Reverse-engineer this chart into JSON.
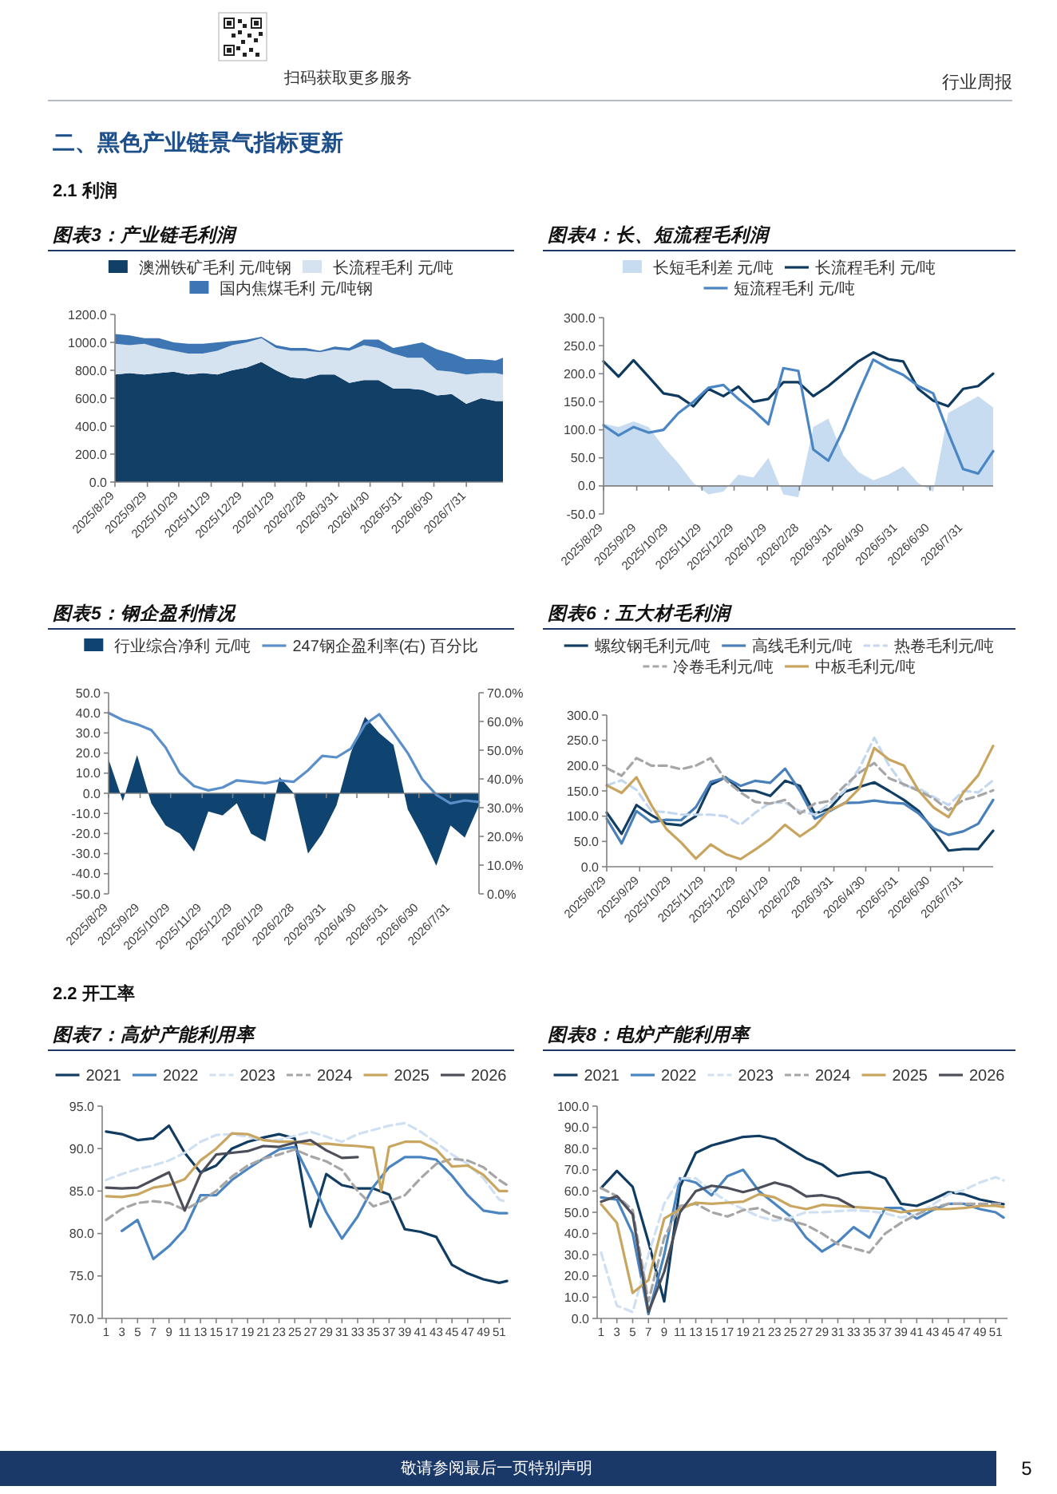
{
  "chart_data": [
    {
      "type": "area",
      "title": "图表3：产业链毛利润",
      "stacked": true,
      "legend": "top",
      "x": [
        "2025-08-29",
        "2025-09-12",
        "2025-09-26",
        "2025-10-10",
        "2025-10-24",
        "2025-11-07",
        "2025-11-21",
        "2025-12-05",
        "2025-12-19",
        "2026-01-02",
        "2026-01-16",
        "2026-01-30",
        "2026-02-13",
        "2026-02-27",
        "2026-03-13",
        "2026-03-27",
        "2026-04-10",
        "2026-04-24",
        "2026-05-08",
        "2026-05-22",
        "2026-06-05",
        "2026-06-19",
        "2026-07-03",
        "2026-07-17",
        "2026-07-31",
        "2026-08-14",
        "2026-08-28",
        "2026-09-04"
      ],
      "series": [
        {
          "name": "澳洲铁矿毛利 元/吨钢",
          "color": "#123f66",
          "values": [
            770,
            780,
            770,
            780,
            790,
            770,
            780,
            770,
            800,
            820,
            860,
            800,
            750,
            740,
            770,
            770,
            710,
            730,
            730,
            670,
            670,
            660,
            620,
            630,
            560,
            600,
            580,
            580
          ]
        },
        {
          "name": "长流程毛利 元/吨",
          "color": "#d5e3f1",
          "values": [
            220,
            200,
            220,
            180,
            150,
            150,
            140,
            170,
            180,
            180,
            170,
            160,
            190,
            200,
            160,
            180,
            230,
            250,
            230,
            250,
            220,
            230,
            180,
            160,
            210,
            180,
            200,
            190
          ]
        },
        {
          "name": "国内焦煤毛利 元/吨钢",
          "color": "#3d76b3",
          "values": [
            70,
            70,
            40,
            70,
            60,
            70,
            70,
            60,
            30,
            20,
            10,
            20,
            20,
            20,
            10,
            20,
            20,
            40,
            60,
            40,
            90,
            110,
            150,
            130,
            110,
            100,
            90,
            120
          ]
        }
      ],
      "xlim": [
        "2025-08-29",
        "2026-09-04"
      ],
      "xticks": [
        {
          "value": "2025-08-29",
          "label": "2025/8/29"
        },
        {
          "value": "2025-09-29",
          "label": "2025/9/29"
        },
        {
          "value": "2025-10-29",
          "label": "2025/10/29"
        },
        {
          "value": "2025-11-29",
          "label": "2025/11/29"
        },
        {
          "value": "2025-12-29",
          "label": "2025/12/29"
        },
        {
          "value": "2026-01-29",
          "label": "2026/1/29"
        },
        {
          "value": "2026-02-28",
          "label": "2026/2/28"
        },
        {
          "value": "2026-03-31",
          "label": "2026/3/31"
        },
        {
          "value": "2026-04-30",
          "label": "2026/4/30"
        },
        {
          "value": "2026-05-31",
          "label": "2026/5/31"
        },
        {
          "value": "2026-06-30",
          "label": "2026/6/30"
        },
        {
          "value": "2026-07-31",
          "label": "2026/7/31"
        }
      ],
      "ylim": [
        0,
        1200
      ],
      "yticks": [
        {
          "value": 0,
          "label": "0.0"
        },
        {
          "value": 200,
          "label": "200.0"
        },
        {
          "value": 400,
          "label": "400.0"
        },
        {
          "value": 600,
          "label": "600.0"
        },
        {
          "value": 800,
          "label": "800.0"
        },
        {
          "value": 1000,
          "label": "1000.0"
        },
        {
          "value": 1200,
          "label": "1200.0"
        }
      ],
      "annotations": [
        "扫码获取更多服务",
        "行业周报",
        "二、黑色产业链景气指标更新",
        "2.1 利润"
      ]
    },
    {
      "type": "line",
      "title": "图表4：长、短流程毛利润",
      "legend": "top",
      "x": [
        "2025-08-29",
        "2025-09-12",
        "2025-09-26",
        "2025-10-10",
        "2025-10-24",
        "2025-11-07",
        "2025-11-21",
        "2025-12-05",
        "2025-12-19",
        "2026-01-02",
        "2026-01-16",
        "2026-01-30",
        "2026-02-13",
        "2026-02-27",
        "2026-03-13",
        "2026-03-27",
        "2026-04-10",
        "2026-04-24",
        "2026-05-08",
        "2026-05-22",
        "2026-06-05",
        "2026-06-19",
        "2026-07-03",
        "2026-07-17",
        "2026-07-31",
        "2026-08-14",
        "2026-08-28"
      ],
      "series": [
        {
          "name": "长短毛利差 元/吨",
          "type": "area",
          "color": "#c7dcf0",
          "values": [
            111,
            105,
            115,
            105,
            70,
            40,
            5,
            -15,
            -10,
            20,
            15,
            50,
            -15,
            -20,
            105,
            120,
            55,
            25,
            10,
            20,
            35,
            5,
            -10,
            130,
            145,
            160,
            140
          ]
        },
        {
          "name": "长流程毛利 元/吨",
          "color": "#0f3a5f",
          "values": [
            222,
            195,
            224,
            195,
            165,
            160,
            142,
            173,
            160,
            177,
            150,
            155,
            185,
            185,
            160,
            178,
            200,
            222,
            238,
            226,
            222,
            173,
            152,
            142,
            173,
            178,
            200
          ]
        },
        {
          "name": "短流程毛利 元/吨",
          "color": "#4b86c4",
          "values": [
            108,
            90,
            105,
            95,
            100,
            130,
            150,
            175,
            180,
            155,
            135,
            110,
            210,
            205,
            65,
            45,
            100,
            165,
            225,
            210,
            198,
            178,
            165,
            95,
            30,
            22,
            62
          ]
        }
      ],
      "xlim": [
        "2025-08-29",
        "2026-08-28"
      ],
      "xticks": [
        {
          "value": "2025-08-29",
          "label": "2025/8/29"
        },
        {
          "value": "2025-09-29",
          "label": "2025/9/29"
        },
        {
          "value": "2025-10-29",
          "label": "2025/10/29"
        },
        {
          "value": "2025-11-29",
          "label": "2025/11/29"
        },
        {
          "value": "2025-12-29",
          "label": "2025/12/29"
        },
        {
          "value": "2026-01-29",
          "label": "2026/1/29"
        },
        {
          "value": "2026-02-28",
          "label": "2026/2/28"
        },
        {
          "value": "2026-03-31",
          "label": "2026/3/31"
        },
        {
          "value": "2026-04-30",
          "label": "2026/4/30"
        },
        {
          "value": "2026-05-31",
          "label": "2026/5/31"
        },
        {
          "value": "2026-06-30",
          "label": "2026/6/30"
        },
        {
          "value": "2026-07-31",
          "label": "2026/7/31"
        }
      ],
      "ylim": [
        -50,
        300
      ],
      "yticks": [
        {
          "value": -50,
          "label": "-50.0"
        },
        {
          "value": 0,
          "label": "0.0"
        },
        {
          "value": 50,
          "label": "50.0"
        },
        {
          "value": 100,
          "label": "100.0"
        },
        {
          "value": 150,
          "label": "150.0"
        },
        {
          "value": 200,
          "label": "200.0"
        },
        {
          "value": 250,
          "label": "250.0"
        },
        {
          "value": 300,
          "label": "300.0"
        }
      ]
    },
    {
      "type": "area",
      "title": "图表5：钢企盈利情况",
      "legend": "top",
      "x": [
        "2025-08-29",
        "2025-09-12",
        "2025-09-26",
        "2025-10-10",
        "2025-10-24",
        "2025-11-07",
        "2025-11-21",
        "2025-12-05",
        "2025-12-19",
        "2026-01-02",
        "2026-01-16",
        "2026-01-30",
        "2026-02-13",
        "2026-02-27",
        "2026-03-13",
        "2026-03-27",
        "2026-04-10",
        "2026-04-24",
        "2026-05-08",
        "2026-05-22",
        "2026-06-05",
        "2026-06-19",
        "2026-07-03",
        "2026-07-17",
        "2026-07-31",
        "2026-08-14",
        "2026-08-28"
      ],
      "series": [
        {
          "name": "行业综合净利 元/吨",
          "color": "#104470",
          "values": [
            17,
            -4,
            19,
            -5,
            -16,
            -20,
            -29,
            -9,
            -11,
            -5,
            -20,
            -24,
            8,
            0,
            -30,
            -20,
            -6,
            20,
            38,
            30,
            24,
            -8,
            -21,
            -36,
            -16,
            -22,
            -6
          ]
        },
        {
          "name": "247钢企盈利率(右) 百分比",
          "type": "line",
          "axis": "y2",
          "color": "#5b8fca",
          "values": [
            63,
            60.5,
            59,
            57,
            51,
            42,
            37.5,
            36,
            37,
            39.5,
            39,
            38.5,
            39.5,
            39,
            43,
            48,
            47.5,
            50.5,
            59,
            62.5,
            56,
            49,
            40,
            34.5,
            31.5,
            32.5,
            32
          ]
        }
      ],
      "xlim": [
        "2025-08-29",
        "2026-08-28"
      ],
      "xticks": [
        {
          "value": "2025-08-29",
          "label": "2025/8/29"
        },
        {
          "value": "2025-09-29",
          "label": "2025/9/29"
        },
        {
          "value": "2025-10-29",
          "label": "2025/10/29"
        },
        {
          "value": "2025-11-29",
          "label": "2025/11/29"
        },
        {
          "value": "2025-12-29",
          "label": "2025/12/29"
        },
        {
          "value": "2026-01-29",
          "label": "2026/1/29"
        },
        {
          "value": "2026-02-28",
          "label": "2026/2/28"
        },
        {
          "value": "2026-03-31",
          "label": "2026/3/31"
        },
        {
          "value": "2026-04-30",
          "label": "2026/4/30"
        },
        {
          "value": "2026-05-31",
          "label": "2026/5/31"
        },
        {
          "value": "2026-06-30",
          "label": "2026/6/30"
        },
        {
          "value": "2026-07-31",
          "label": "2026/7/31"
        }
      ],
      "ylim": [
        -50,
        50
      ],
      "yticks": [
        {
          "value": -50,
          "label": "-50.0"
        },
        {
          "value": -40,
          "label": "-40.0"
        },
        {
          "value": -30,
          "label": "-30.0"
        },
        {
          "value": -20,
          "label": "-20.0"
        },
        {
          "value": -10,
          "label": "-10.0"
        },
        {
          "value": 0,
          "label": "0.0"
        },
        {
          "value": 10,
          "label": "10.0"
        },
        {
          "value": 20,
          "label": "20.0"
        },
        {
          "value": 30,
          "label": "30.0"
        },
        {
          "value": 40,
          "label": "40.0"
        },
        {
          "value": 50,
          "label": "50.0"
        }
      ],
      "y2lim": [
        0,
        70
      ],
      "y2ticks": [
        {
          "value": 0,
          "label": "0.0%"
        },
        {
          "value": 10,
          "label": "10.0%"
        },
        {
          "value": 20,
          "label": "20.0%"
        },
        {
          "value": 30,
          "label": "30.0%"
        },
        {
          "value": 40,
          "label": "40.0%"
        },
        {
          "value": 50,
          "label": "50.0%"
        },
        {
          "value": 60,
          "label": "60.0%"
        },
        {
          "value": 70,
          "label": "70.0%"
        }
      ]
    },
    {
      "type": "line",
      "title": "图表6：五大材毛利润",
      "legend": "top",
      "x": [
        "2025-08-29",
        "2025-09-12",
        "2025-09-26",
        "2025-10-10",
        "2025-10-24",
        "2025-11-07",
        "2025-11-21",
        "2025-12-05",
        "2025-12-19",
        "2026-01-02",
        "2026-01-16",
        "2026-01-30",
        "2026-02-13",
        "2026-02-27",
        "2026-03-13",
        "2026-03-27",
        "2026-04-10",
        "2026-04-24",
        "2026-05-08",
        "2026-05-22",
        "2026-06-05",
        "2026-06-19",
        "2026-07-03",
        "2026-07-17",
        "2026-07-31",
        "2026-08-14",
        "2026-08-28"
      ],
      "series": [
        {
          "name": "螺纹钢毛利元/吨",
          "color": "#123e64",
          "values": [
            107,
            65,
            122,
            102,
            85,
            82,
            100,
            162,
            177,
            151,
            150,
            140,
            170,
            160,
            105,
            115,
            148,
            158,
            167,
            150,
            132,
            110,
            72,
            32,
            35,
            35,
            71
          ]
        },
        {
          "name": "高线毛利元/吨",
          "color": "#4a80ba",
          "values": [
            95,
            46,
            110,
            88,
            93,
            92,
            118,
            168,
            176,
            160,
            170,
            166,
            194,
            150,
            95,
            110,
            126,
            127,
            131,
            127,
            125,
            105,
            76,
            63,
            70,
            85,
            132
          ]
        },
        {
          "name": "热卷毛利元/吨",
          "color": "#c3d8ee",
          "line_style": "dashed",
          "values": [
            161,
            171,
            152,
            110,
            108,
            103,
            103,
            103,
            100,
            83,
            107,
            127,
            127,
            110,
            103,
            125,
            150,
            195,
            255,
            200,
            160,
            155,
            138,
            122,
            150,
            147,
            171
          ]
        },
        {
          "name": "冷卷毛利元/吨",
          "color": "#a6a6a6",
          "line_style": "dashed",
          "values": [
            195,
            180,
            215,
            200,
            200,
            193,
            200,
            215,
            171,
            147,
            128,
            125,
            132,
            105,
            125,
            130,
            160,
            186,
            205,
            175,
            163,
            150,
            135,
            112,
            132,
            140,
            151
          ]
        },
        {
          "name": "中板毛利元/吨",
          "color": "#c8a45e",
          "values": [
            161,
            146,
            177,
            122,
            75,
            48,
            16,
            44,
            25,
            15,
            34,
            55,
            83,
            60,
            80,
            112,
            125,
            155,
            235,
            212,
            200,
            150,
            117,
            98,
            147,
            181,
            239
          ]
        }
      ],
      "xlim": [
        "2025-08-29",
        "2026-08-28"
      ],
      "xticks": [
        {
          "value": "2025-08-29",
          "label": "2025/8/29"
        },
        {
          "value": "2025-09-29",
          "label": "2025/9/29"
        },
        {
          "value": "2025-10-29",
          "label": "2025/10/29"
        },
        {
          "value": "2025-11-29",
          "label": "2025/11/29"
        },
        {
          "value": "2025-12-29",
          "label": "2025/12/29"
        },
        {
          "value": "2026-01-29",
          "label": "2026/1/29"
        },
        {
          "value": "2026-02-28",
          "label": "2026/2/28"
        },
        {
          "value": "2026-03-31",
          "label": "2026/3/31"
        },
        {
          "value": "2026-04-30",
          "label": "2026/4/30"
        },
        {
          "value": "2026-05-31",
          "label": "2026/5/31"
        },
        {
          "value": "2026-06-30",
          "label": "2026/6/30"
        },
        {
          "value": "2026-07-31",
          "label": "2026/7/31"
        }
      ],
      "ylim": [
        0,
        300
      ],
      "yticks": [
        {
          "value": 0,
          "label": "0.0"
        },
        {
          "value": 50,
          "label": "50.0"
        },
        {
          "value": 100,
          "label": "100.0"
        },
        {
          "value": 150,
          "label": "150.0"
        },
        {
          "value": 200,
          "label": "200.0"
        },
        {
          "value": 250,
          "label": "250.0"
        },
        {
          "value": 300,
          "label": "300.0"
        }
      ]
    },
    {
      "type": "line",
      "title": "图表7：高炉产能利用率",
      "legend": "top",
      "x": [
        1,
        3,
        5,
        7,
        9,
        11,
        13,
        15,
        17,
        19,
        21,
        23,
        25,
        27,
        29,
        31,
        33,
        35,
        37,
        39,
        41,
        43,
        45,
        47,
        49,
        51,
        52
      ],
      "series": [
        {
          "name": "2021",
          "color": "#113c62",
          "values": [
            92.0,
            91.7,
            91.0,
            91.2,
            92.7,
            89.5,
            87.2,
            88.0,
            90.0,
            90.8,
            91.3,
            91.7,
            91.2,
            80.8,
            87.0,
            85.7,
            85.3,
            85.3,
            84.6,
            80.5,
            80.2,
            79.6,
            76.3,
            75.3,
            74.6,
            74.2,
            74.4
          ]
        },
        {
          "name": "2022",
          "color": "#4a84c1",
          "values": [
            null,
            80.3,
            81.6,
            77.0,
            78.5,
            80.5,
            84.5,
            84.5,
            86.3,
            87.6,
            88.8,
            89.9,
            90.2,
            86.5,
            82.5,
            79.4,
            82.0,
            85.5,
            87.8,
            89.0,
            89.0,
            88.7,
            86.8,
            84.5,
            82.7,
            82.4,
            82.4
          ]
        },
        {
          "name": "2023",
          "color": "#cfe0f2",
          "line_style": "dashed",
          "values": [
            86.3,
            87.0,
            87.6,
            88.0,
            88.6,
            89.5,
            90.8,
            91.6,
            91.7,
            91.4,
            91.0,
            91.0,
            91.5,
            92.0,
            91.4,
            90.8,
            91.7,
            92.2,
            92.7,
            93.0,
            92.0,
            90.7,
            89.3,
            88.2,
            86.5,
            84.0,
            83.7
          ]
        },
        {
          "name": "2024",
          "color": "#a6a6a6",
          "line_style": "dashed",
          "values": [
            81.6,
            82.9,
            83.6,
            83.8,
            83.6,
            82.8,
            83.8,
            85.0,
            86.7,
            88.0,
            88.8,
            89.3,
            89.9,
            89.1,
            88.5,
            87.5,
            85.0,
            83.2,
            83.8,
            84.5,
            86.5,
            88.2,
            88.8,
            88.6,
            87.8,
            86.3,
            85.7
          ]
        },
        {
          "name": "2025",
          "color": "#c9a660",
          "x": [
            1,
            3,
            5,
            7,
            9,
            11,
            13,
            15,
            17,
            19,
            21,
            23,
            25,
            27,
            29,
            31,
            33,
            35,
            36,
            37,
            39,
            41,
            43,
            45,
            47,
            49,
            51,
            52
          ],
          "values": [
            84.4,
            84.3,
            84.6,
            85.4,
            85.7,
            86.4,
            88.6,
            90.0,
            91.8,
            91.7,
            91.0,
            90.8,
            90.8,
            90.5,
            90.6,
            90.4,
            90.3,
            90.1,
            85.0,
            90.2,
            90.8,
            90.8,
            89.9,
            87.9,
            88.0,
            86.9,
            85.0,
            85.0
          ]
        },
        {
          "name": "2026",
          "color": "#4c4f5a",
          "x": [
            1,
            3,
            5,
            7,
            9,
            11,
            13,
            15,
            17,
            19,
            21,
            23,
            25,
            27,
            29,
            31,
            33
          ],
          "values": [
            85.4,
            85.3,
            85.4,
            86.3,
            87.2,
            82.7,
            87.0,
            89.3,
            89.5,
            89.7,
            90.3,
            90.2,
            90.7,
            91.0,
            89.8,
            88.9,
            89.0
          ]
        }
      ],
      "xlim": [
        0.5,
        52.5
      ],
      "xticks": [
        1,
        3,
        5,
        7,
        9,
        11,
        13,
        15,
        17,
        19,
        21,
        23,
        25,
        27,
        29,
        31,
        33,
        35,
        37,
        39,
        41,
        43,
        45,
        47,
        49,
        51
      ],
      "ylim": [
        70,
        95
      ],
      "yticks": [
        {
          "value": 70,
          "label": "70.0"
        },
        {
          "value": 75,
          "label": "75.0"
        },
        {
          "value": 80,
          "label": "80.0"
        },
        {
          "value": 85,
          "label": "85.0"
        },
        {
          "value": 90,
          "label": "90.0"
        },
        {
          "value": 95,
          "label": "95.0"
        }
      ],
      "annotations": [
        "2.2 开工率"
      ]
    },
    {
      "type": "line",
      "title": "图表8：电炉产能利用率",
      "legend": "top",
      "x": [
        1,
        3,
        5,
        7,
        9,
        11,
        13,
        15,
        17,
        19,
        21,
        23,
        25,
        27,
        29,
        31,
        33,
        35,
        37,
        39,
        41,
        43,
        45,
        47,
        49,
        51,
        52
      ],
      "series": [
        {
          "name": "2021",
          "color": "#113c62",
          "values": [
            61.4,
            69.5,
            62,
            36,
            8,
            62,
            78,
            81.5,
            83.5,
            85.5,
            86,
            84.5,
            80,
            75.4,
            72.5,
            67,
            68.5,
            69,
            66,
            54,
            53,
            56,
            59.5,
            58.5,
            56,
            54.5,
            53.8
          ]
        },
        {
          "name": "2022",
          "color": "#4a84c1",
          "values": [
            57,
            56,
            40,
            2,
            30,
            66,
            64,
            58,
            67,
            70,
            60,
            54,
            48,
            38,
            31.5,
            36,
            43,
            38,
            52,
            52,
            47,
            51,
            54,
            54,
            51.5,
            50,
            47.5
          ]
        },
        {
          "name": "2023",
          "color": "#cfe0f2",
          "line_style": "dashed",
          "values": [
            31,
            6,
            3,
            30,
            54,
            66,
            66,
            60,
            55,
            51.5,
            48,
            46,
            47.5,
            50,
            50,
            50.5,
            51,
            50.5,
            49.5,
            47.5,
            49,
            53.5,
            58.5,
            60.5,
            64,
            66.5,
            65
          ]
        },
        {
          "name": "2024",
          "color": "#a6a6a6",
          "line_style": "dashed",
          "values": [
            61.4,
            57.6,
            51,
            8,
            38,
            53,
            54,
            50,
            48,
            51,
            52,
            48,
            46,
            44,
            40,
            35,
            33,
            31,
            40,
            45,
            49,
            52,
            54,
            54,
            54,
            54,
            54
          ]
        },
        {
          "name": "2025",
          "color": "#c9a660",
          "values": [
            53.8,
            45,
            12,
            18,
            47,
            51.5,
            54.5,
            54,
            54.5,
            55,
            58.5,
            57,
            53,
            51.5,
            53.5,
            53,
            52.5,
            52,
            51.5,
            50,
            51,
            51.5,
            51.5,
            52,
            53,
            53,
            52.5
          ]
        },
        {
          "name": "2026",
          "color": "#4c4f5a",
          "x": [
            1,
            3,
            5,
            7,
            9,
            11,
            13,
            15,
            17,
            19,
            21,
            23,
            25,
            27,
            29,
            31,
            33
          ],
          "values": [
            55,
            57.6,
            49,
            3,
            22,
            50,
            60,
            62.5,
            61.5,
            59.5,
            61.5,
            64,
            62,
            57.5,
            58,
            56.5,
            52.5
          ]
        }
      ],
      "xlim": [
        0.5,
        52.5
      ],
      "xticks": [
        1,
        3,
        5,
        7,
        9,
        11,
        13,
        15,
        17,
        19,
        21,
        23,
        25,
        27,
        29,
        31,
        33,
        35,
        37,
        39,
        41,
        43,
        45,
        47,
        49,
        51
      ],
      "ylim": [
        0,
        100
      ],
      "yticks": [
        {
          "value": 0,
          "label": "0.0"
        },
        {
          "value": 10,
          "label": "10.0"
        },
        {
          "value": 20,
          "label": "20.0"
        },
        {
          "value": 30,
          "label": "30.0"
        },
        {
          "value": 40,
          "label": "40.0"
        },
        {
          "value": 50,
          "label": "50.0"
        },
        {
          "value": 60,
          "label": "60.0"
        },
        {
          "value": 70,
          "label": "70.0"
        },
        {
          "value": 80,
          "label": "80.0"
        },
        {
          "value": 90,
          "label": "90.0"
        },
        {
          "value": 100,
          "label": "100.0"
        }
      ],
      "annotations": [
        "敬请参阅最后一页特别声明",
        "5"
      ]
    }
  ]
}
